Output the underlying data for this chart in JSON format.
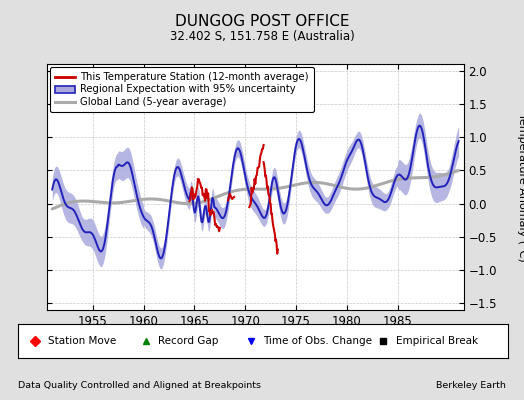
{
  "title": "DUNGOG POST OFFICE",
  "subtitle": "32.402 S, 151.758 E (Australia)",
  "ylabel": "Temperature Anomaly (°C)",
  "xlim": [
    1950.5,
    1991.5
  ],
  "ylim": [
    -1.6,
    2.1
  ],
  "yticks": [
    -1.5,
    -1.0,
    -0.5,
    0.0,
    0.5,
    1.0,
    1.5,
    2.0
  ],
  "xticks": [
    1955,
    1960,
    1965,
    1970,
    1975,
    1980,
    1985
  ],
  "footer_left": "Data Quality Controlled and Aligned at Breakpoints",
  "footer_right": "Berkeley Earth",
  "bg_color": "#e0e0e0",
  "plot_bg_color": "#ffffff",
  "regional_color": "#2222bb",
  "regional_fill_color": "#aaaadd",
  "station_color": "#cc0000",
  "global_color": "#aaaaaa",
  "global_lw": 2.2,
  "regional_lw": 1.4,
  "station_lw": 1.5
}
